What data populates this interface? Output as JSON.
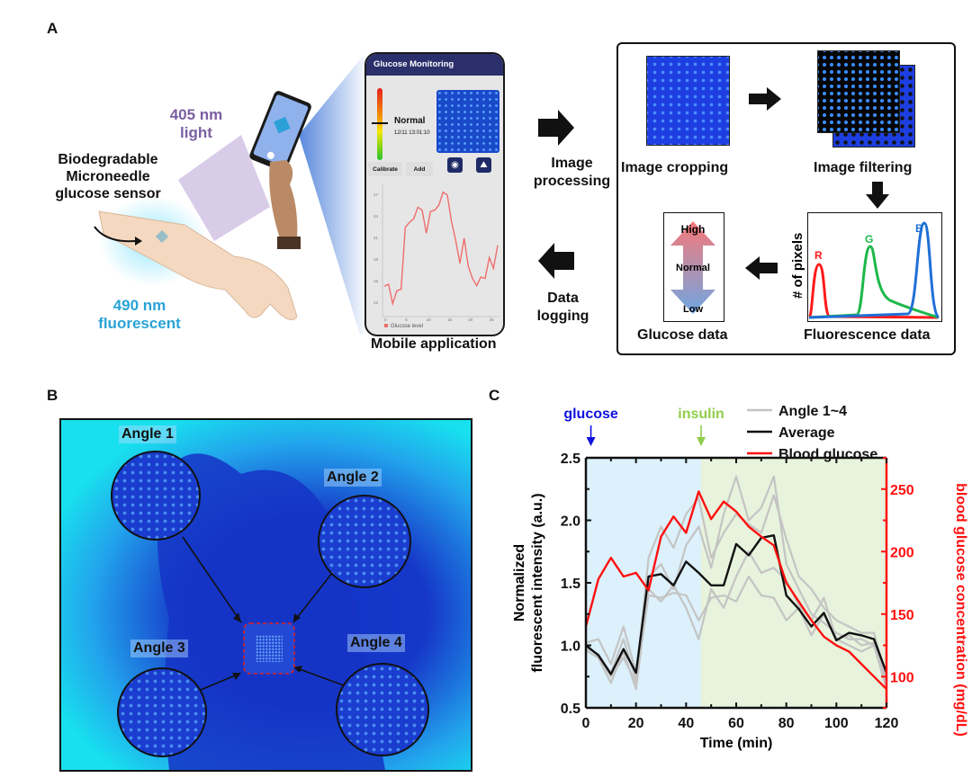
{
  "panel_labels": {
    "a": "A",
    "b": "B",
    "c": "C"
  },
  "panel_a": {
    "sensor_label": [
      "Biodegradable",
      "Microneedle",
      "glucose sensor"
    ],
    "excitation_label": [
      "405 nm",
      "light"
    ],
    "emission_label": [
      "490 nm",
      "fluorescent"
    ],
    "mobile_app": {
      "title": "Glucose Monitoring",
      "status": "Normal",
      "timestamp": "12/11 13:01:10",
      "calibrate_button": "Calibrate",
      "add_button": "Add",
      "camera_icon": "camera-icon",
      "gallery_icon": "image-icon",
      "legend": "Glucose level",
      "caption": "Mobile application",
      "mini_chart_values": [
        14.2,
        14.5,
        11.8,
        13.6,
        13.8,
        22.4,
        23.1,
        23.6,
        25.2,
        24.8,
        21.6,
        24.6,
        24.8,
        25.5,
        27.3,
        26.9,
        23.2,
        20.6,
        17.4,
        20.9,
        17.0,
        15.3,
        14.3,
        15.5,
        15.3,
        18.2,
        16.7,
        19.9
      ],
      "mini_chart_yticks": [
        "27",
        "24",
        "21",
        "18",
        "15",
        "12"
      ],
      "mini_chart_xticks": [
        "0",
        "5",
        "10",
        "15",
        "20",
        "25"
      ]
    },
    "arrow_right_label": [
      "Image",
      "processing"
    ],
    "arrow_left_label": [
      "Data",
      "logging"
    ],
    "steps": {
      "cropping": "Image cropping",
      "filtering": "Image filtering",
      "fluorescence": "Fluorescence data",
      "glucose": "Glucose data"
    },
    "histogram": {
      "ylabel": "# of pixels",
      "channels": [
        {
          "name": "R",
          "color": "#ff1a1a"
        },
        {
          "name": "G",
          "color": "#1db84a"
        },
        {
          "name": "B",
          "color": "#1f6fd6"
        }
      ]
    },
    "glucose_scale": {
      "high": "High",
      "normal": "Normal",
      "low": "Low"
    }
  },
  "panel_b": {
    "angles": [
      "Angle 1",
      "Angle 2",
      "Angle 3",
      "Angle 4"
    ]
  },
  "chart_data": {
    "type": "line",
    "title": "",
    "xlabel": "Time (min)",
    "ylabel": "Normalized fluorescent intensity (a.u.)",
    "ylabel_lines": [
      "Normalized",
      "fluorescent intensity (a.u.)"
    ],
    "y2label": "blood glucose concentration (mg/dL)",
    "xlim": [
      0,
      120
    ],
    "ylim": [
      0.5,
      2.5
    ],
    "y2lim": [
      75,
      275
    ],
    "xticks": [
      0,
      20,
      40,
      60,
      80,
      100,
      120
    ],
    "yticks": [
      "0.5",
      "1.0",
      "1.5",
      "2.0",
      "2.5"
    ],
    "y2ticks": [
      100,
      150,
      200,
      250
    ],
    "grid": false,
    "legend_position": "top-right",
    "annotations": [
      {
        "text": "glucose",
        "x": 2,
        "color": "#1010e0"
      },
      {
        "text": "insulin",
        "x": 46,
        "color": "#8fce4a"
      }
    ],
    "shaded_regions": [
      {
        "from": 0,
        "to": 46,
        "color": "#dcf1fb"
      },
      {
        "from": 46,
        "to": 120,
        "color": "#e7f3dc"
      }
    ],
    "x": [
      0,
      5,
      10,
      15,
      20,
      25,
      30,
      35,
      40,
      45,
      50,
      55,
      60,
      65,
      70,
      75,
      80,
      85,
      90,
      95,
      100,
      105,
      110,
      115,
      120
    ],
    "series": [
      {
        "name": "Angle 1~4",
        "axis": "left",
        "color": "#c4c4c4",
        "legend": true,
        "values": [
          0.98,
          0.93,
          0.78,
          1.05,
          0.72,
          1.7,
          1.95,
          1.78,
          2.05,
          2.18,
          1.7,
          1.9,
          2.05,
          1.97,
          1.9,
          2.2,
          1.85,
          1.55,
          1.45,
          1.3,
          1.2,
          1.15,
          1.1,
          1.1,
          0.72
        ]
      },
      {
        "name": "Angle 2",
        "axis": "left",
        "color": "#c4c4c4",
        "legend": false,
        "values": [
          1.02,
          1.05,
          0.85,
          1.15,
          0.78,
          1.55,
          1.65,
          1.45,
          1.8,
          1.95,
          1.62,
          2.05,
          2.35,
          2.0,
          2.1,
          2.35,
          1.65,
          1.45,
          1.25,
          1.18,
          1.1,
          1.05,
          1.05,
          1.0,
          0.65
        ]
      },
      {
        "name": "Angle 3",
        "axis": "left",
        "color": "#c4c4c4",
        "legend": false,
        "values": [
          0.96,
          0.9,
          0.7,
          0.95,
          0.65,
          1.45,
          1.35,
          1.48,
          1.3,
          1.05,
          1.45,
          1.3,
          1.55,
          1.75,
          1.58,
          1.62,
          1.52,
          1.32,
          1.2,
          1.38,
          1.05,
          1.08,
          1.0,
          1.02,
          0.7
        ]
      },
      {
        "name": "Angle 4",
        "axis": "left",
        "color": "#c4c4c4",
        "legend": false,
        "values": [
          1.0,
          0.92,
          0.75,
          0.9,
          0.7,
          1.4,
          1.38,
          1.42,
          1.4,
          1.2,
          1.38,
          1.4,
          1.35,
          1.55,
          1.4,
          1.38,
          1.2,
          1.3,
          1.08,
          1.25,
          1.05,
          1.0,
          0.95,
          1.0,
          0.68
        ]
      },
      {
        "name": "Average",
        "axis": "left",
        "color": "#111111",
        "legend": true,
        "values": [
          1.0,
          0.92,
          0.77,
          0.97,
          0.78,
          1.55,
          1.57,
          1.48,
          1.67,
          1.58,
          1.48,
          1.48,
          1.81,
          1.72,
          1.86,
          1.88,
          1.4,
          1.29,
          1.15,
          1.26,
          1.04,
          1.1,
          1.08,
          1.05,
          0.78
        ]
      },
      {
        "name": "Blood glucose",
        "axis": "right",
        "color": "#ff1010",
        "legend": true,
        "values": [
          140,
          178,
          195,
          180,
          183,
          169,
          212,
          228,
          215,
          248,
          226,
          240,
          232,
          220,
          212,
          205,
          175,
          160,
          145,
          132,
          125,
          120,
          110,
          100,
          90
        ]
      }
    ]
  }
}
